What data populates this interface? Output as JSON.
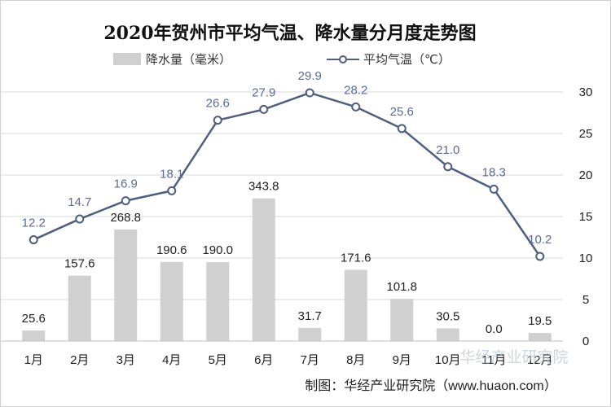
{
  "chart_data": {
    "type": "bar",
    "title": "2020年贺州市平均气温、降水量分月度走势图",
    "categories": [
      "1月",
      "2月",
      "3月",
      "4月",
      "5月",
      "6月",
      "7月",
      "8月",
      "9月",
      "10月",
      "11月",
      "12月"
    ],
    "series": [
      {
        "name": "降水量（毫米）",
        "type": "bar",
        "axis": "left",
        "values": [
          25.6,
          157.6,
          268.8,
          190.6,
          190.0,
          343.8,
          31.7,
          171.6,
          101.8,
          30.5,
          0.0,
          19.5
        ],
        "labels": [
          "25.6",
          "157.6",
          "268.8",
          "190.6",
          "190.0",
          "343.8",
          "31.7",
          "171.6",
          "101.8",
          "30.5",
          "0.0",
          "19.5"
        ]
      },
      {
        "name": "平均气温（℃）",
        "type": "line",
        "axis": "right",
        "values": [
          12.2,
          14.7,
          16.9,
          18.1,
          26.6,
          27.9,
          29.9,
          28.2,
          25.6,
          21.0,
          18.3,
          10.2
        ],
        "labels": [
          "12.2",
          "14.7",
          "16.9",
          "18.1",
          "26.6",
          "27.9",
          "29.9",
          "28.2",
          "25.6",
          "21.0",
          "18.3",
          "10.2"
        ]
      }
    ],
    "y_left": {
      "ylim": [
        0,
        600
      ]
    },
    "y_right": {
      "ylim": [
        0,
        30
      ],
      "ticks": [
        "0",
        "5",
        "10",
        "15",
        "20",
        "25",
        "30"
      ]
    },
    "grid": true,
    "legend": "top-center",
    "colors": {
      "bar": "#d0d0d0",
      "line": "#4f5d80",
      "marker_fill": "#ffffff",
      "label": "#5b6aa0",
      "grid": "#d9d9d9"
    }
  },
  "source_note": "制图：华经产业研究院（www.huaon.com）",
  "watermark": "华经产业研究院"
}
